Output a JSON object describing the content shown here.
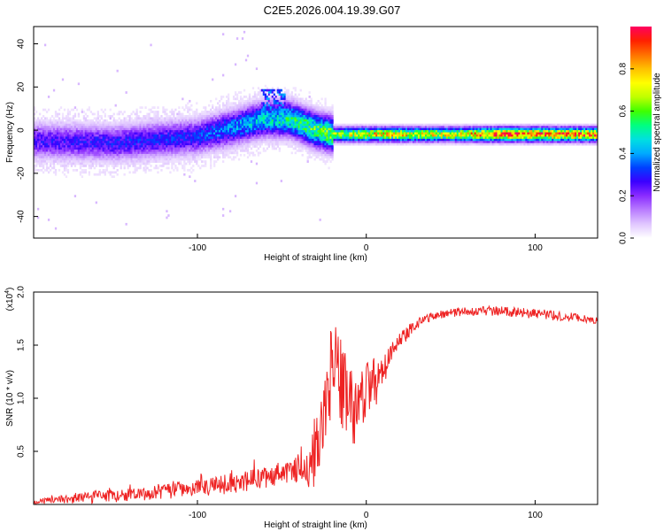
{
  "figure": {
    "title": "C2E5.2026.004.19.39.G07"
  },
  "chart_data": [
    {
      "type": "heatmap",
      "name": "spectrogram",
      "xlabel": "Height of straight line (km)",
      "ylabel": "Frequency (Hz)",
      "xlim": [
        -197,
        137
      ],
      "ylim": [
        -50,
        48
      ],
      "xticks": [
        -100,
        0,
        100
      ],
      "xtick_labels": [
        "-100",
        "0",
        "100"
      ],
      "yticks": [
        -40,
        -20,
        0,
        20,
        40
      ],
      "ytick_labels": [
        "-40",
        "-20",
        "0",
        "20",
        "40"
      ],
      "description_points": {
        "ridge_center_hz": [
          [
            -197,
            -5
          ],
          [
            -150,
            -6
          ],
          [
            -100,
            -3
          ],
          [
            -60,
            5
          ],
          [
            -45,
            5
          ],
          [
            -30,
            0
          ],
          [
            -20,
            -2
          ],
          [
            0,
            -2
          ],
          [
            137,
            -2
          ]
        ],
        "ridge_peak_amplitude": [
          [
            -197,
            0.25
          ],
          [
            -100,
            0.3
          ],
          [
            -60,
            0.45
          ],
          [
            -20,
            0.6
          ],
          [
            0,
            0.75
          ],
          [
            50,
            0.7
          ],
          [
            80,
            0.9
          ],
          [
            137,
            0.85
          ]
        ]
      }
    },
    {
      "type": "colorbar",
      "name": "colorbar",
      "label": "Normalized spectral amplitude",
      "range": [
        0.0,
        1.0
      ],
      "ticks": [
        0.0,
        0.2,
        0.4,
        0.6,
        0.8
      ],
      "tick_labels": [
        "0.0",
        "0.2",
        "0.4",
        "0.6",
        "0.8"
      ],
      "colors": [
        "#ffffff",
        "#e0c6ff",
        "#b97cff",
        "#8a2cff",
        "#3a00ff",
        "#0040ff",
        "#00aaff",
        "#00e0e0",
        "#00ff80",
        "#40ff00",
        "#c0ff00",
        "#ffff00",
        "#ffc000",
        "#ff7000",
        "#ff2000",
        "#ff0060"
      ]
    },
    {
      "type": "line",
      "name": "snr",
      "xlabel": "Height of straight line (km)",
      "ylabel": "SNR (10 * v/v)",
      "multiplier_label": "(x10",
      "multiplier_exp": "4",
      "multiplier_close": ")",
      "xlim": [
        -197,
        137
      ],
      "ylim": [
        0,
        2.0
      ],
      "xticks": [
        -100,
        0,
        100
      ],
      "xtick_labels": [
        "-100",
        "0",
        "100"
      ],
      "yticks": [
        0.5,
        1.0,
        1.5,
        2.0
      ],
      "ytick_labels": [
        "0.5",
        "1.0",
        "1.5",
        "2.0"
      ],
      "color": "#ee2222",
      "x": [
        -197,
        -180,
        -160,
        -140,
        -120,
        -100,
        -80,
        -60,
        -50,
        -40,
        -35,
        -30,
        -25,
        -20,
        -15,
        -10,
        -5,
        0,
        5,
        10,
        15,
        20,
        30,
        40,
        60,
        80,
        100,
        110,
        120,
        137
      ],
      "y": [
        0.02,
        0.05,
        0.07,
        0.09,
        0.12,
        0.15,
        0.2,
        0.25,
        0.3,
        0.33,
        0.28,
        0.45,
        0.8,
        1.3,
        1.2,
        0.95,
        0.9,
        1.05,
        1.15,
        1.3,
        1.45,
        1.55,
        1.7,
        1.78,
        1.82,
        1.82,
        1.8,
        1.78,
        1.77,
        1.73
      ],
      "noise": [
        0.02,
        0.04,
        0.06,
        0.06,
        0.07,
        0.08,
        0.1,
        0.1,
        0.1,
        0.12,
        0.15,
        0.35,
        0.45,
        0.5,
        0.45,
        0.4,
        0.35,
        0.3,
        0.25,
        0.2,
        0.12,
        0.08,
        0.05,
        0.04,
        0.04,
        0.05,
        0.05,
        0.05,
        0.04,
        0.03
      ]
    }
  ]
}
